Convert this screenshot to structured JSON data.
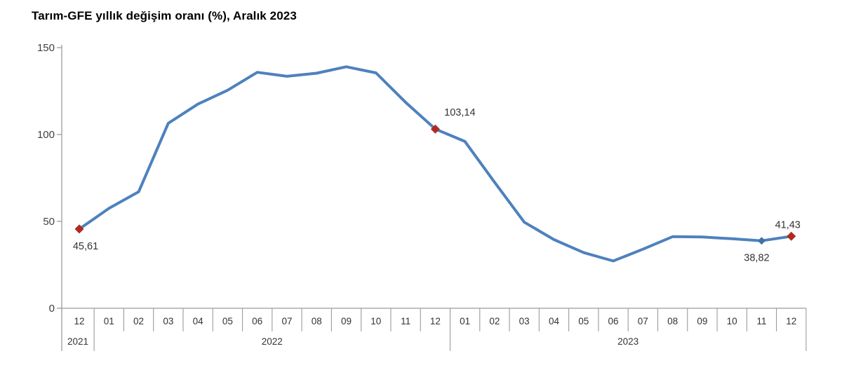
{
  "colors": {
    "line": "#4E81BD",
    "marker_highlight": "#B02A21",
    "marker_regular": "#3F72A8",
    "axis": "#9B9B9B",
    "text": "#3F3F3F",
    "label_text": "#333333",
    "title_text": "#000000",
    "background": "#FFFFFF"
  },
  "chart_data": {
    "type": "line",
    "title": "Tarım-GFE yıllık değişim oranı (%), Aralık 2023",
    "xlabel": "",
    "ylabel": "",
    "ylim": [
      0,
      150
    ],
    "yticks": [
      "0",
      "50",
      "100",
      "150"
    ],
    "grid": false,
    "legend_position": "none",
    "x_groups": [
      {
        "year": "2021",
        "months": [
          "12"
        ]
      },
      {
        "year": "2022",
        "months": [
          "01",
          "02",
          "03",
          "04",
          "05",
          "06",
          "07",
          "08",
          "09",
          "10",
          "11",
          "12"
        ]
      },
      {
        "year": "2023",
        "months": [
          "01",
          "02",
          "03",
          "04",
          "05",
          "06",
          "07",
          "08",
          "09",
          "10",
          "11",
          "12"
        ]
      }
    ],
    "series": [
      {
        "name": "Tarım-GFE yıllık değişim oranı (%)",
        "values": [
          45.61,
          57.5,
          67.0,
          106.5,
          117.5,
          125.5,
          135.8,
          133.5,
          135.3,
          139.0,
          135.5,
          118.5,
          103.14,
          96.0,
          72.5,
          49.5,
          39.5,
          32.0,
          27.2,
          34.0,
          41.2,
          41.0,
          40.0,
          38.82,
          41.43
        ]
      }
    ],
    "annotations": [
      {
        "index": 0,
        "label": "45,61",
        "marker": "diamond",
        "marker_color": "#B02A21",
        "label_position": "below-left"
      },
      {
        "index": 12,
        "label": "103,14",
        "marker": "diamond",
        "marker_color": "#B02A21",
        "label_position": "above-right"
      },
      {
        "index": 23,
        "label": "38,82",
        "marker": "diamond",
        "marker_color": "#3F72A8",
        "label_position": "below"
      },
      {
        "index": 24,
        "label": "41,43",
        "marker": "diamond",
        "marker_color": "#B02A21",
        "label_position": "above"
      }
    ]
  }
}
